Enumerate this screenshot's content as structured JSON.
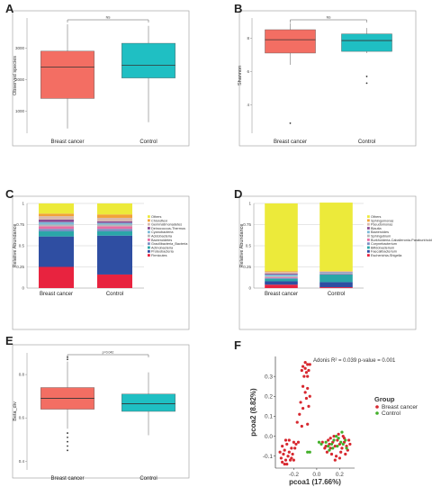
{
  "colors": {
    "breast_cancer": "#f36e63",
    "control": "#1fbfc3",
    "panel_border": "#9a9a9a",
    "grid": "#bfbfbf"
  },
  "chart_data": [
    {
      "panel": "A",
      "type": "box",
      "ylabel": "Observed species",
      "yticks": [
        1000,
        2000,
        3000
      ],
      "ylim": [
        300,
        3950
      ],
      "categories": [
        "Breast cancer",
        "Control"
      ],
      "boxes": [
        {
          "name": "Breast cancer",
          "min": 450,
          "q1": 1400,
          "median": 2400,
          "q3": 2900,
          "max": 3750
        },
        {
          "name": "Control",
          "min": 650,
          "q1": 2050,
          "median": 2450,
          "q3": 3150,
          "max": 3700
        }
      ],
      "outliers": [
        [],
        []
      ],
      "annotation": "NS"
    },
    {
      "panel": "B",
      "type": "box",
      "ylabel": "Shannon",
      "yticks": [
        4,
        6,
        8
      ],
      "ylim": [
        2.3,
        9.2
      ],
      "categories": [
        "Breast cancer",
        "Control"
      ],
      "boxes": [
        {
          "name": "Breast cancer",
          "min": 6.4,
          "q1": 7.1,
          "median": 7.9,
          "q3": 8.5,
          "max": 8.9
        },
        {
          "name": "Control",
          "min": 7.1,
          "q1": 7.2,
          "median": 7.85,
          "q3": 8.25,
          "max": 8.6
        }
      ],
      "outliers": [
        [
          2.9
        ],
        [
          5.7,
          5.3
        ]
      ],
      "annotation": "NS"
    },
    {
      "panel": "C",
      "type": "stacked_bar",
      "ylabel": "Relative Abundance",
      "yticks": [
        "0",
        "0.25",
        "0.5",
        "0.75",
        "1"
      ],
      "ylim": [
        0,
        1
      ],
      "categories": [
        "Breast cancer",
        "Control"
      ],
      "legend": [
        "Others",
        "Chloroflexi",
        "Gemmatimonadetes",
        "Deinococcus-Thermus",
        "Cyanobacteria",
        "Acidobacteria",
        "Bacteroidetes",
        "Gracilibacteria_Bacteria",
        "Actinobacteria",
        "Proteobacteria",
        "Firmicutes"
      ],
      "series": [
        {
          "name": "Firmicutes",
          "color": "#e8233f",
          "values": [
            0.25,
            0.16
          ]
        },
        {
          "name": "Proteobacteria",
          "color": "#2f4ea2",
          "values": [
            0.36,
            0.46
          ]
        },
        {
          "name": "Actinobacteria",
          "color": "#2aa6a8",
          "values": [
            0.06,
            0.05
          ]
        },
        {
          "name": "Gracilibacteria_Bacteria",
          "color": "#7a8fc2",
          "values": [
            0.03,
            0.03
          ]
        },
        {
          "name": "Bacteroidetes",
          "color": "#e86ea4",
          "values": [
            0.03,
            0.03
          ]
        },
        {
          "name": "Acidobacteria",
          "color": "#b7b7b7",
          "values": [
            0.02,
            0.02
          ]
        },
        {
          "name": "Cyanobacteria",
          "color": "#7cb8d6",
          "values": [
            0.03,
            0.02
          ]
        },
        {
          "name": "Deinococcus-Thermus",
          "color": "#8c4d93",
          "values": [
            0.03,
            0.02
          ]
        },
        {
          "name": "Gemmatimonadetes",
          "color": "#d9b9ad",
          "values": [
            0.04,
            0.04
          ]
        },
        {
          "name": "Chloroflexi",
          "color": "#f2a23a",
          "values": [
            0.03,
            0.04
          ]
        },
        {
          "name": "Others",
          "color": "#ecea3a",
          "values": [
            0.12,
            0.13
          ]
        }
      ]
    },
    {
      "panel": "D",
      "type": "stacked_bar",
      "ylabel": "Relative Abundance",
      "yticks": [
        "0",
        "0.25",
        "0.5",
        "0.75",
        "1"
      ],
      "ylim": [
        0,
        1
      ],
      "categories": [
        "Breast cancer",
        "Control"
      ],
      "legend": [
        "Others",
        "Sphingomonas",
        "Pseudomonas",
        "Blautia",
        "Bacteroides",
        "Sphingobium",
        "Burkholderia-Caballeronia-Paraburkholderia",
        "Corynebacterium",
        "Bifidobacterium",
        "Faecalibacterium",
        "Escherichia-Shigella"
      ],
      "series": [
        {
          "name": "Escherichia-Shigella",
          "color": "#e8233f",
          "values": [
            0.04,
            0.01
          ]
        },
        {
          "name": "Faecalibacterium",
          "color": "#2f4ea2",
          "values": [
            0.04,
            0.06
          ]
        },
        {
          "name": "Bifidobacterium",
          "color": "#2aa6a8",
          "values": [
            0.03,
            0.09
          ]
        },
        {
          "name": "Corynebacterium",
          "color": "#7a8fc2",
          "values": [
            0.01,
            0.005
          ]
        },
        {
          "name": "Burkholderia-Caballeronia-Paraburkholderia",
          "color": "#e86ea4",
          "values": [
            0.01,
            0.005
          ]
        },
        {
          "name": "Sphingobium",
          "color": "#b7b7b7",
          "values": [
            0.01,
            0.005
          ]
        },
        {
          "name": "Bacteroides",
          "color": "#7cb8d6",
          "values": [
            0.02,
            0.01
          ]
        },
        {
          "name": "Blautia",
          "color": "#8c4d93",
          "values": [
            0.01,
            0.005
          ]
        },
        {
          "name": "Pseudomonas",
          "color": "#d9b9ad",
          "values": [
            0.02,
            0.005
          ]
        },
        {
          "name": "Sphingomonas",
          "color": "#f2a23a",
          "values": [
            0.01,
            0.005
          ]
        },
        {
          "name": "Others",
          "color": "#ecea3a",
          "values": [
            0.8,
            0.81
          ]
        }
      ]
    },
    {
      "panel": "E",
      "type": "box",
      "ylabel": "Beta_div",
      "yticks": [
        0.4,
        0.6,
        0.8
      ],
      "ylim": [
        0.36,
        0.9
      ],
      "categories": [
        "Breast cancer",
        "Control"
      ],
      "boxes": [
        {
          "name": "Breast cancer",
          "min": 0.55,
          "q1": 0.64,
          "median": 0.69,
          "q3": 0.74,
          "max": 0.86
        },
        {
          "name": "Control",
          "min": 0.52,
          "q1": 0.63,
          "median": 0.665,
          "q3": 0.71,
          "max": 0.81
        }
      ],
      "outliers": [
        [
          0.45,
          0.47,
          0.49,
          0.51,
          0.53,
          0.87,
          0.88
        ],
        []
      ],
      "annotation": "p=0.042"
    },
    {
      "panel": "F",
      "type": "scatter",
      "xlabel": "pcoa1 (17.66%)",
      "ylabel": "pcoa2 (8.82%)",
      "xticks": [
        "-0.2",
        "0.0",
        "0.2"
      ],
      "yticks": [
        "-0.1",
        "0.0",
        "0.1",
        "0.2",
        "0.3"
      ],
      "xlim": [
        -0.36,
        0.33
      ],
      "ylim": [
        -0.16,
        0.4
      ],
      "annotation": "Adonis   R² = 0.039   p-value = 0.001",
      "legend_title": "Group",
      "series": [
        {
          "name": "Breast cancer",
          "color": "#d7282f",
          "points": [
            [
              -0.12,
              0.35
            ],
            [
              -0.1,
              0.37
            ],
            [
              -0.08,
              0.36
            ],
            [
              -0.09,
              0.32
            ],
            [
              -0.11,
              0.3
            ],
            [
              -0.07,
              0.33
            ],
            [
              -0.06,
              0.36
            ],
            [
              -0.13,
              0.33
            ],
            [
              -0.1,
              0.34
            ],
            [
              -0.08,
              0.3
            ],
            [
              -0.12,
              0.25
            ],
            [
              -0.1,
              0.22
            ],
            [
              -0.09,
              0.19
            ],
            [
              -0.08,
              0.24
            ],
            [
              -0.06,
              0.2
            ],
            [
              -0.14,
              0.17
            ],
            [
              -0.12,
              0.14
            ],
            [
              -0.07,
              0.15
            ],
            [
              -0.15,
              0.11
            ],
            [
              -0.17,
              0.07
            ],
            [
              -0.13,
              0.05
            ],
            [
              -0.08,
              0.06
            ],
            [
              -0.3,
              -0.05
            ],
            [
              -0.28,
              -0.07
            ],
            [
              -0.26,
              -0.04
            ],
            [
              -0.24,
              -0.08
            ],
            [
              -0.22,
              -0.06
            ],
            [
              -0.2,
              -0.03
            ],
            [
              -0.25,
              -0.1
            ],
            [
              -0.27,
              -0.12
            ],
            [
              -0.29,
              -0.09
            ],
            [
              -0.31,
              -0.11
            ],
            [
              -0.21,
              -0.09
            ],
            [
              -0.19,
              -0.06
            ],
            [
              -0.23,
              -0.12
            ],
            [
              -0.26,
              -0.14
            ],
            [
              -0.28,
              -0.14
            ],
            [
              -0.3,
              -0.13
            ],
            [
              -0.18,
              -0.04
            ],
            [
              -0.24,
              -0.02
            ],
            [
              -0.32,
              -0.08
            ],
            [
              -0.22,
              -0.11
            ],
            [
              -0.16,
              -0.03
            ],
            [
              -0.2,
              -0.12
            ],
            [
              -0.27,
              -0.02
            ],
            [
              0.05,
              -0.03
            ],
            [
              0.08,
              -0.05
            ],
            [
              0.1,
              -0.02
            ],
            [
              0.12,
              -0.06
            ],
            [
              0.14,
              -0.03
            ],
            [
              0.16,
              -0.05
            ],
            [
              0.18,
              -0.02
            ],
            [
              0.2,
              -0.04
            ],
            [
              0.22,
              -0.06
            ],
            [
              0.24,
              -0.03
            ],
            [
              0.26,
              -0.05
            ],
            [
              0.28,
              -0.02
            ],
            [
              0.15,
              0.0
            ],
            [
              0.19,
              0.01
            ],
            [
              0.23,
              0.0
            ],
            [
              0.09,
              -0.08
            ],
            [
              0.13,
              -0.09
            ],
            [
              0.17,
              -0.1
            ],
            [
              0.21,
              -0.08
            ],
            [
              0.25,
              -0.09
            ],
            [
              0.11,
              -0.04
            ],
            [
              0.27,
              -0.07
            ],
            [
              0.07,
              -0.06
            ],
            [
              0.2,
              -0.11
            ],
            [
              0.16,
              -0.12
            ],
            [
              0.24,
              -0.01
            ],
            [
              0.29,
              -0.04
            ],
            [
              0.12,
              -0.01
            ]
          ]
        },
        {
          "name": "Control",
          "color": "#43b02a",
          "points": [
            [
              0.02,
              -0.03
            ],
            [
              0.04,
              -0.04
            ],
            [
              0.08,
              -0.03
            ],
            [
              0.1,
              -0.05
            ],
            [
              0.13,
              -0.04
            ],
            [
              0.15,
              -0.02
            ],
            [
              0.18,
              -0.05
            ],
            [
              0.21,
              -0.03
            ],
            [
              0.23,
              -0.04
            ],
            [
              0.26,
              -0.06
            ],
            [
              0.19,
              -0.01
            ],
            [
              0.22,
              0.02
            ],
            [
              0.11,
              -0.07
            ],
            [
              0.14,
              -0.06
            ],
            [
              -0.08,
              -0.08
            ],
            [
              -0.06,
              -0.08
            ],
            [
              0.17,
              0.0
            ],
            [
              0.25,
              -0.02
            ]
          ]
        }
      ]
    }
  ]
}
